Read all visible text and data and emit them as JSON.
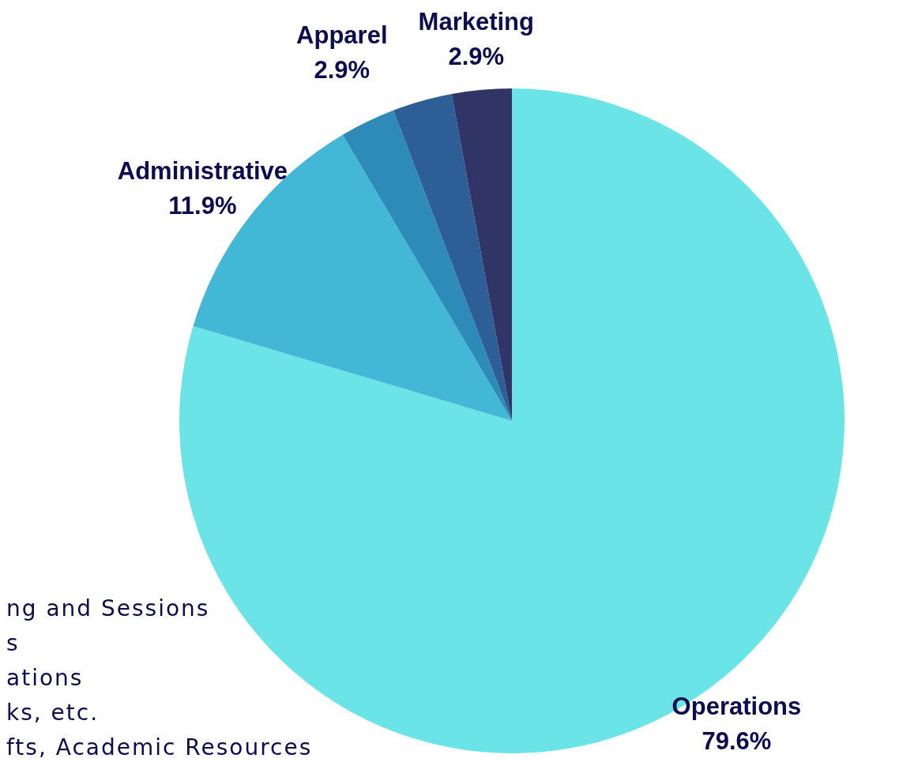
{
  "chart_data": {
    "type": "pie",
    "categories": [
      "Operations",
      "Administrative",
      null,
      "Apparel",
      "Marketing"
    ],
    "values": [
      79.6,
      11.9,
      2.7,
      2.9,
      2.9
    ],
    "colors": [
      "#6be4e8",
      "#43b7d6",
      "#2d8ab9",
      "#2e5e96",
      "#303466"
    ],
    "value_labels": [
      "79.6%",
      "11.9%",
      null,
      "2.9%",
      "2.9%"
    ],
    "annotations": [
      "ng and Sessions",
      "s",
      "ations",
      "ks, etc.",
      "fts, Academic Resources"
    ]
  }
}
